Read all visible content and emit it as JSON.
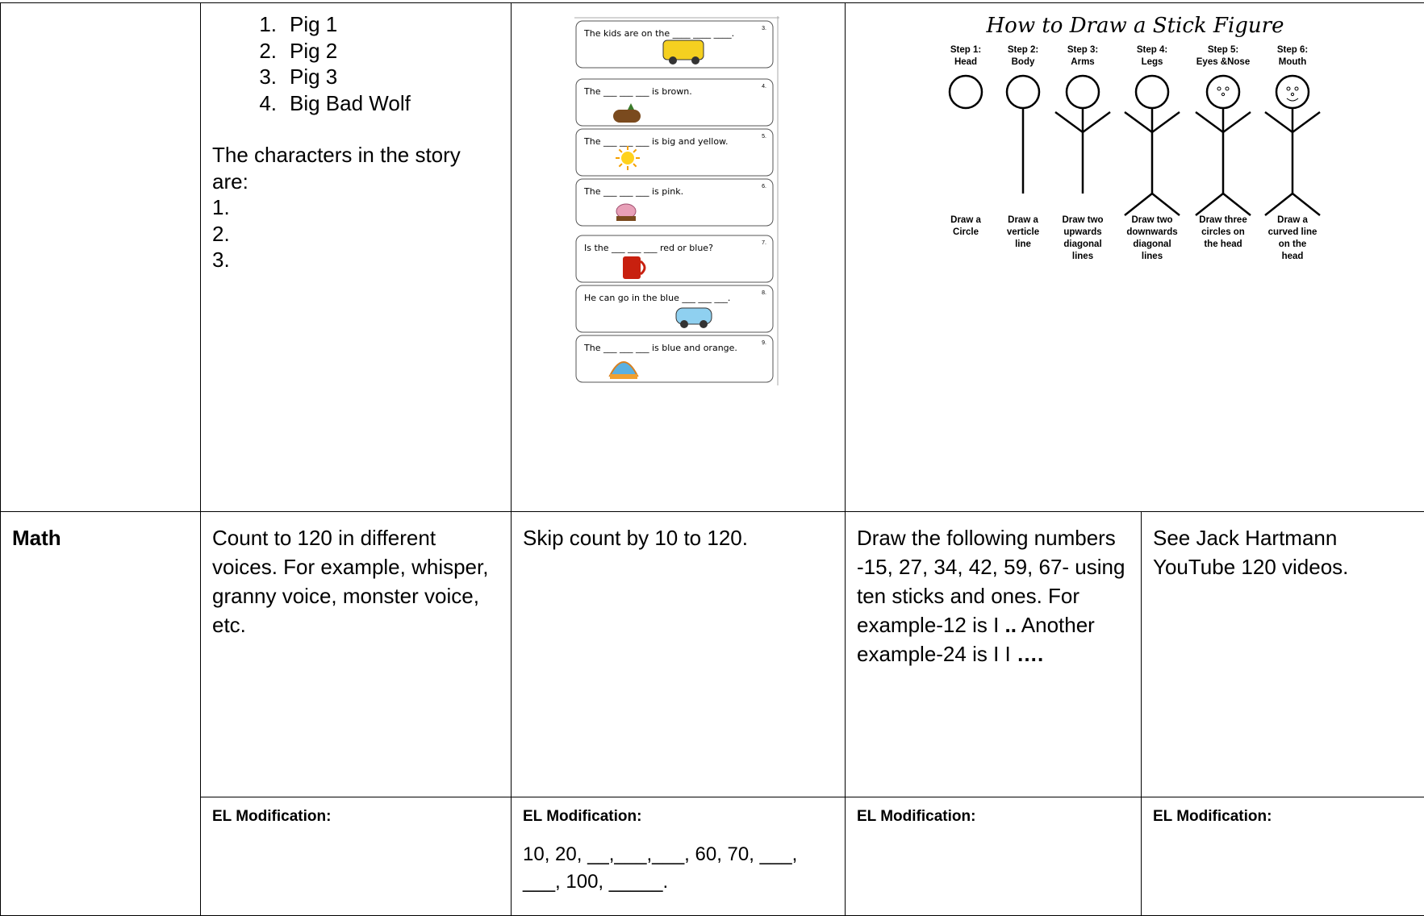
{
  "reading_row": {
    "list_numbers": [
      "1.",
      "2.",
      "3.",
      "4."
    ],
    "list": [
      "Pig 1",
      "Pig 2",
      "Pig 3",
      "Big Bad Wolf"
    ],
    "prompt": "The characters in the story are:",
    "blanks": [
      "1.",
      "2.",
      "3."
    ],
    "worksheet": [
      {
        "sentence": "The kids are on the ____ ____ ____.",
        "number": "3."
      },
      {
        "sentence": "The ___ ___ ___ is brown.",
        "number": "4."
      },
      {
        "sentence": "The ___ ___ ___ is big and yellow.",
        "number": "5."
      },
      {
        "sentence": "The ___ ___ ___ is pink.",
        "number": "6."
      },
      {
        "sentence": "Is the ___ ___ ___ red or blue?",
        "number": "7."
      },
      {
        "sentence": "He can go in the blue ___ ___ ___.",
        "number": "8."
      },
      {
        "sentence": "The ___ ___ ___ is blue and orange.",
        "number": "9."
      }
    ],
    "stick_figure": {
      "title": "How to Draw a Stick Figure",
      "steps": [
        {
          "step": "Step 1:",
          "part": "Head",
          "desc": [
            "Draw a",
            "Circle"
          ]
        },
        {
          "step": "Step 2:",
          "part": "Body",
          "desc": [
            "Draw a",
            "verticle",
            "line"
          ]
        },
        {
          "step": "Step 3:",
          "part": "Arms",
          "desc": [
            "Draw two",
            "upwards",
            "diagonal",
            "lines"
          ]
        },
        {
          "step": "Step 4:",
          "part": "Legs",
          "desc": [
            "Draw two",
            "downwards",
            "diagonal",
            "lines"
          ]
        },
        {
          "step": "Step 5:",
          "part": "Eyes &Nose",
          "desc": [
            "Draw three",
            "circles on",
            "the head"
          ]
        },
        {
          "step": "Step 6:",
          "part": "Mouth",
          "desc": [
            "Draw a",
            "curved line",
            "on the",
            "head"
          ]
        }
      ]
    }
  },
  "math": {
    "subject": "Math",
    "activities": [
      [
        {
          "text": "Count to 120 in different voices.  For example, whisper, granny voice, monster voice, etc."
        }
      ],
      [
        {
          "text": "Skip count by 10 to 120."
        }
      ],
      [
        {
          "text": "Draw the following numbers -15, 27, 34, 42, 59, 67- using ten sticks and ones. For example-12 is  I "
        },
        {
          "text": "..",
          "bold": true
        },
        {
          "text": " Another example-24 is I I "
        },
        {
          "text": "….",
          "bold": true
        }
      ],
      [
        {
          "text": "See Jack Hartmann YouTube 120 videos."
        }
      ]
    ],
    "el_labels": [
      "EL Modification:",
      "EL Modification:",
      "EL Modification:",
      "EL Modification:"
    ],
    "el_note": "10, 20, __,___,___, 60, 70, ___, ___, 100, _____."
  }
}
